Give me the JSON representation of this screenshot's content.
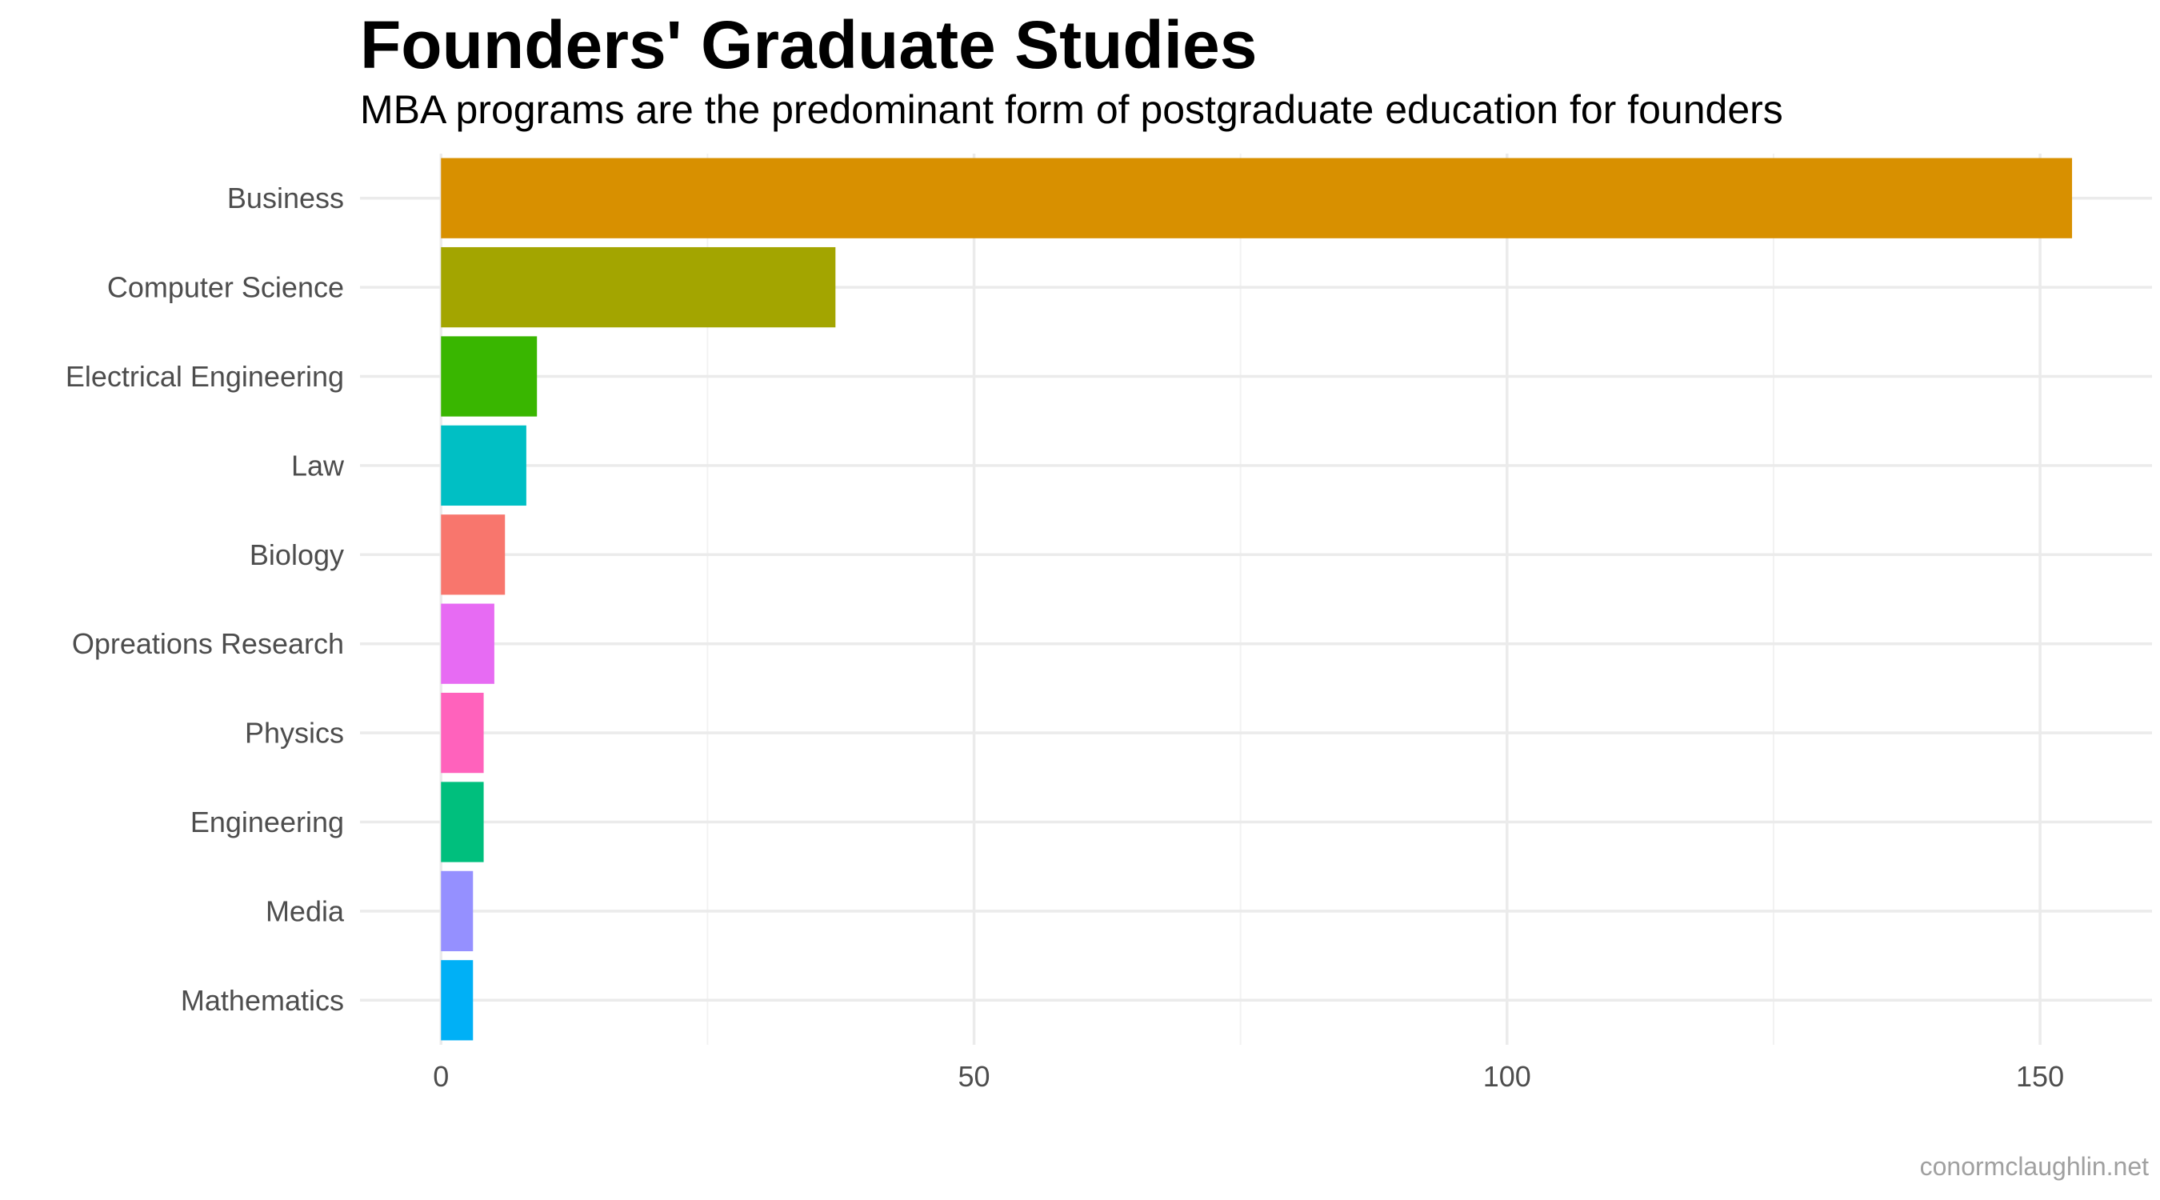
{
  "chart_data": {
    "type": "bar",
    "orientation": "horizontal",
    "title": "Founders' Graduate Studies",
    "subtitle": "MBA programs are the predominant form of postgraduate education for founders",
    "caption": "conormclaughlin.net",
    "categories": [
      "Business",
      "Computer Science",
      "Electrical Engineering",
      "Law",
      "Biology",
      "Opreations Research",
      "Physics",
      "Engineering",
      "Media",
      "Mathematics"
    ],
    "values": [
      153,
      37,
      9,
      8,
      6,
      5,
      4,
      4,
      3,
      3
    ],
    "colors": [
      "#D89000",
      "#A3A500",
      "#39B600",
      "#00BFC4",
      "#F8766D",
      "#E76BF3",
      "#FF62BC",
      "#00BF7D",
      "#9590FF",
      "#00B0F6"
    ],
    "x_ticks": [
      0,
      50,
      100,
      150
    ],
    "xlim": [
      -7.6,
      160.5
    ],
    "xlabel": "",
    "ylabel": "",
    "grid": true,
    "legend": "none"
  }
}
